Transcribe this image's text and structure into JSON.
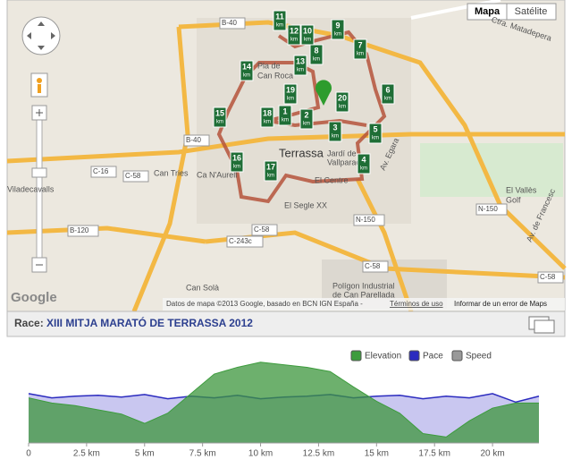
{
  "map": {
    "buttons": [
      "Mapa",
      "Satélite"
    ],
    "places": [
      "Pla de",
      "Can Roca",
      "Terrassa",
      "Can Tries",
      "Ca N'Aurell",
      "El Centre",
      "El Segle XX",
      "Jardí de",
      "Vallparadís",
      "Viladecavalls",
      "El Vallès",
      "Golf",
      "Can Solà",
      "Polígon Industrial",
      "de Can Parellada",
      "Ctra. Matadepera",
      "Av. Egara",
      "Av. de Francesc"
    ],
    "roads": [
      "B-40",
      "B-40",
      "C-16",
      "C-58",
      "B-120",
      "C-243c",
      "C-58",
      "N-150",
      "N-150",
      "C-58",
      "C-58"
    ],
    "markers": [
      "1",
      "2",
      "3",
      "4",
      "5",
      "6",
      "7",
      "8",
      "9",
      "10",
      "11",
      "12",
      "13",
      "14",
      "15",
      "16",
      "17",
      "18",
      "19",
      "20"
    ],
    "marker_unit": "km",
    "attribution": "Datos de mapa ©2013 Google, basado en BCN IGN España -",
    "terms": "Términos de uso",
    "report": "Informar de un error de Maps",
    "logo": "Google"
  },
  "race": {
    "label": "Race:",
    "name": "XIII MITJA MARATÓ DE TERRASSA 2012"
  },
  "chart_data": {
    "type": "area",
    "x": [
      0,
      1,
      2,
      3,
      4,
      5,
      6,
      7,
      8,
      9,
      10,
      11,
      12,
      13,
      14,
      15,
      16,
      17,
      18,
      19,
      20,
      21,
      22
    ],
    "series": [
      {
        "name": "Elevation",
        "color": "#3d9c3d",
        "values": [
          53,
          47,
          44,
          39,
          34,
          23,
          35,
          58,
          81,
          89,
          95,
          92,
          89,
          84,
          66,
          49,
          35,
          11,
          7,
          26,
          41,
          47,
          47
        ]
      },
      {
        "name": "Pace",
        "color": "#2b2bbf",
        "values": [
          58,
          53,
          55,
          56,
          54,
          57,
          52,
          55,
          53,
          56,
          52,
          54,
          55,
          57,
          53,
          55,
          56,
          52,
          55,
          53,
          58,
          48,
          55
        ]
      }
    ],
    "speed": {
      "name": "Speed",
      "color": "#999999"
    },
    "xlim": [
      0,
      22
    ],
    "ylim": [
      0,
      100
    ],
    "xticks": [
      0,
      {
        "value": 2.5,
        "label": "2.5 km"
      },
      {
        "value": 5,
        "label": "5 km"
      },
      {
        "value": 7.5,
        "label": "7.5 km"
      },
      {
        "value": 10,
        "label": "10 km"
      },
      {
        "value": 12.5,
        "label": "12.5 km"
      },
      {
        "value": 15,
        "label": "15 km"
      },
      {
        "value": 17.5,
        "label": "17.5 km"
      },
      {
        "value": 20,
        "label": "20 km"
      }
    ]
  }
}
